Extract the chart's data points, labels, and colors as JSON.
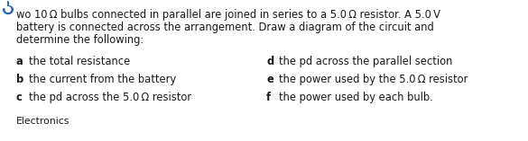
{
  "bullet_color": "#2666b0",
  "text_color": "#1a1a1a",
  "background_color": "#ffffff",
  "figsize": [
    5.85,
    1.57
  ],
  "dpi": 100,
  "intro_line1": "wo 10 Ω bulbs connected in parallel are joined in series to a 5.0 Ω resistor. A 5.0 V",
  "intro_line2": "battery is connected across the arrangement. Draw a diagram of the circuit and",
  "intro_line3": "determine the following:",
  "items_left": [
    [
      "a",
      "  the total resistance"
    ],
    [
      "b",
      "  the current from the battery"
    ],
    [
      "c",
      "  the pd across the 5.0 Ω resistor"
    ]
  ],
  "items_right": [
    [
      "d",
      "  the pd across the parallel section"
    ],
    [
      "e",
      "  the power used by the 5.0 Ω resistor"
    ],
    [
      "f",
      "   the power used by each bulb."
    ]
  ],
  "footer": "Electronics",
  "body_fontsize": 8.3,
  "footer_fontsize": 7.8,
  "bold_fontsize": 8.3
}
